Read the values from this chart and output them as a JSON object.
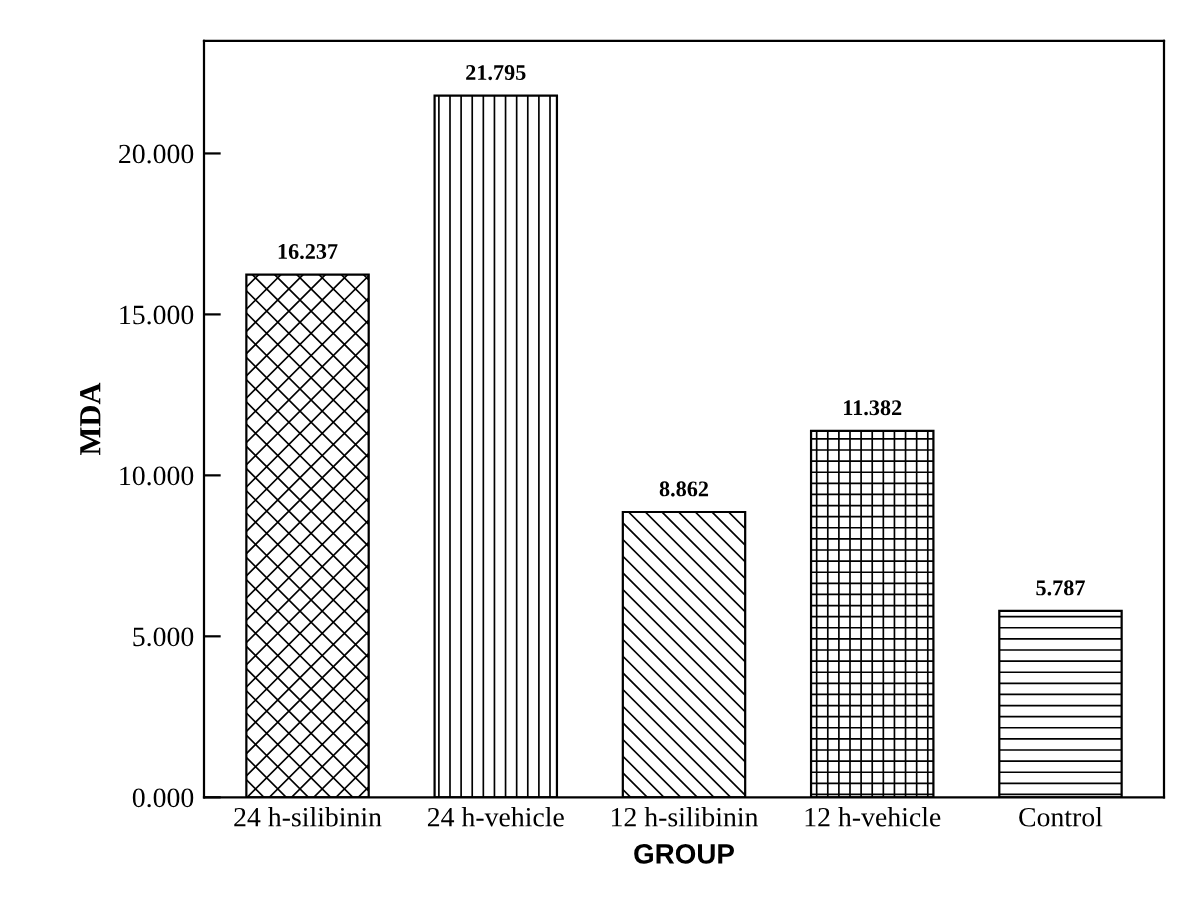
{
  "chart_data": {
    "type": "bar",
    "xlabel": "GROUP",
    "ylabel": "MDA",
    "categories": [
      "24 h-silibinin",
      "24 h-vehicle",
      "12 h-silibinin",
      "12 h-vehicle",
      "Control"
    ],
    "values": [
      16.237,
      21.795,
      8.862,
      11.382,
      5.787
    ],
    "color": "#000000",
    "ylim": [
      0,
      23.5
    ],
    "yticks": [
      {
        "value": 0,
        "label": "0.000"
      },
      {
        "value": 5,
        "label": "5.000"
      },
      {
        "value": 10,
        "label": "10.000"
      },
      {
        "value": 15,
        "label": "15.000"
      },
      {
        "value": 20,
        "label": "20.000"
      }
    ],
    "data_labels": true,
    "grid": false,
    "legend": false
  }
}
